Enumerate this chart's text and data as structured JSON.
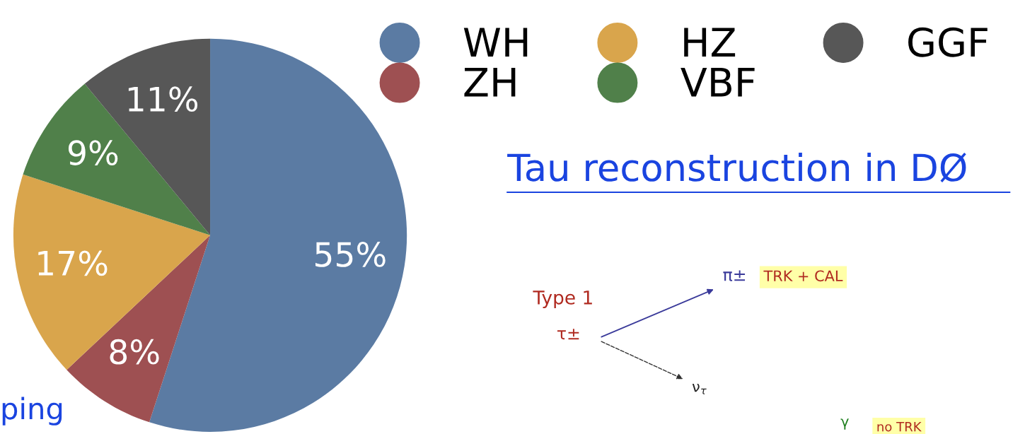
{
  "chart_data": {
    "type": "pie",
    "categories": [
      "WH",
      "ZH",
      "HZ",
      "VBF",
      "GGF"
    ],
    "values": [
      55,
      8,
      17,
      9,
      11
    ],
    "colors": [
      "#5b7ba3",
      "#9e5052",
      "#d9a54c",
      "#50804a",
      "#575757"
    ],
    "value_labels": [
      "55%",
      "8%",
      "17%",
      "9%",
      "11%"
    ],
    "legend": "top right",
    "annotations": [
      "Tau reconstruction in DØ",
      "ping",
      "Type 1",
      "τ±",
      "π±",
      "TRK + CAL",
      "ν$_{τ}$",
      "γ",
      "no TRK"
    ]
  }
}
